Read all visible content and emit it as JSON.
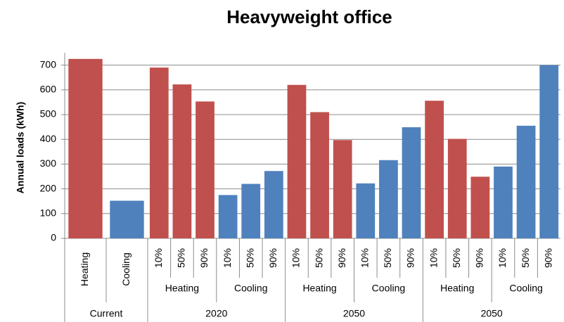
{
  "chart_data": {
    "type": "bar",
    "title": "Heavyweight office",
    "y_label": "Annual loads (kWh)",
    "ylim": [
      0,
      750
    ],
    "yticks": [
      0,
      100,
      200,
      300,
      400,
      500,
      600,
      700
    ],
    "grid": true,
    "groups": [
      {
        "name": "Current",
        "subgroups": [
          {
            "name": "Heating",
            "color": "#c0504d",
            "categories": [
              null
            ],
            "values": [
              725
            ]
          },
          {
            "name": "Cooling",
            "color": "#4f81bd",
            "categories": [
              null
            ],
            "values": [
              152
            ]
          }
        ]
      },
      {
        "name": "2020",
        "subgroups": [
          {
            "name": "Heating",
            "color": "#c0504d",
            "categories": [
              "10%",
              "50%",
              "90%"
            ],
            "values": [
              690,
              622,
              553
            ]
          },
          {
            "name": "Cooling",
            "color": "#4f81bd",
            "categories": [
              "10%",
              "50%",
              "90%"
            ],
            "values": [
              175,
              220,
              272
            ]
          }
        ]
      },
      {
        "name": "2050",
        "subgroups": [
          {
            "name": "Heating",
            "color": "#c0504d",
            "categories": [
              "10%",
              "50%",
              "90%"
            ],
            "values": [
              620,
              510,
              397
            ]
          },
          {
            "name": "Cooling",
            "color": "#4f81bd",
            "categories": [
              "10%",
              "50%",
              "90%"
            ],
            "values": [
              222,
              316,
              449
            ]
          }
        ]
      },
      {
        "name": "2050",
        "subgroups": [
          {
            "name": "Heating",
            "color": "#c0504d",
            "categories": [
              "10%",
              "50%",
              "90%"
            ],
            "values": [
              556,
              402,
              249
            ]
          },
          {
            "name": "Cooling",
            "color": "#4f81bd",
            "categories": [
              "10%",
              "50%",
              "90%"
            ],
            "values": [
              290,
              455,
              700
            ]
          }
        ]
      }
    ]
  }
}
